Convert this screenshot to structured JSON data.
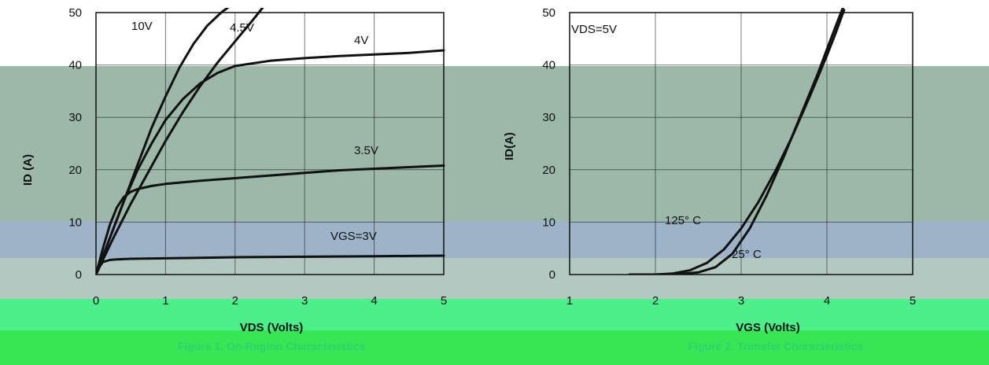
{
  "colors": {
    "plot_bg": "#9bb8a8",
    "band_mid": "#9db3c8",
    "band_low": "#b3c8c0",
    "green_top": "#4cf08a",
    "green_bottom": "#37e655",
    "curve": "#111111",
    "caption": "#2fd26a"
  },
  "chart_data": [
    {
      "type": "line",
      "title": "Figure 1. On-Region Characteristics",
      "xlabel": "VDS (Volts)",
      "ylabel": "ID (A)",
      "xlim": [
        0,
        5
      ],
      "ylim": [
        0,
        50
      ],
      "x_ticks": [
        "0",
        "1",
        "2",
        "3",
        "4",
        "5"
      ],
      "y_ticks": [
        "0",
        "10",
        "20",
        "30",
        "40",
        "50"
      ],
      "series": [
        {
          "name": "10V",
          "x": [
            0,
            0.2,
            0.4,
            0.6,
            0.8,
            1.0,
            1.2,
            1.4,
            1.6,
            1.8,
            1.9
          ],
          "y": [
            0,
            7,
            14,
            21,
            28,
            34,
            39.5,
            44,
            47.5,
            50,
            51
          ]
        },
        {
          "name": "4.5V",
          "x": [
            0,
            0.25,
            0.5,
            0.75,
            1.0,
            1.25,
            1.5,
            1.75,
            2.0,
            2.25,
            2.4
          ],
          "y": [
            0,
            7,
            13.5,
            19.5,
            25.5,
            31,
            36,
            40.5,
            44.5,
            48.5,
            51
          ]
        },
        {
          "name": "4V",
          "x": [
            0,
            0.2,
            0.4,
            0.6,
            0.8,
            1.0,
            1.25,
            1.5,
            1.75,
            2.0,
            2.5,
            3.0,
            3.5,
            4.0,
            4.5,
            5.0
          ],
          "y": [
            0,
            7,
            14,
            20,
            25,
            29.5,
            33.5,
            36.5,
            38.5,
            39.8,
            40.8,
            41.3,
            41.7,
            42,
            42.3,
            42.8
          ]
        },
        {
          "name": "3.5V",
          "x": [
            0,
            0.1,
            0.2,
            0.3,
            0.4,
            0.5,
            0.6,
            0.8,
            1.0,
            1.5,
            2.0,
            2.5,
            3.0,
            3.5,
            4.0,
            4.5,
            5.0
          ],
          "y": [
            0,
            5,
            9.5,
            12.8,
            14.8,
            15.8,
            16.3,
            16.9,
            17.3,
            17.9,
            18.4,
            18.9,
            19.4,
            19.9,
            20.2,
            20.5,
            20.8
          ]
        },
        {
          "name": "VGS=3V",
          "x": [
            0,
            0.05,
            0.1,
            0.2,
            0.3,
            0.5,
            1.0,
            2.0,
            3.0,
            4.0,
            5.0
          ],
          "y": [
            0,
            1.5,
            2.4,
            2.8,
            2.9,
            3.0,
            3.1,
            3.3,
            3.4,
            3.5,
            3.6
          ]
        }
      ],
      "annotations": [
        "10V",
        "4.5V",
        "4V",
        "3.5V",
        "VGS=3V"
      ],
      "grid": true
    },
    {
      "type": "line",
      "title": "Figure 2. Transfer Characteristics",
      "xlabel": "VGS (Volts)",
      "ylabel": "ID(A)",
      "xlim": [
        1,
        5
      ],
      "ylim": [
        0,
        50
      ],
      "x_ticks": [
        "1",
        "2",
        "3",
        "4",
        "5"
      ],
      "y_ticks": [
        "0",
        "10",
        "20",
        "30",
        "40",
        "50"
      ],
      "series": [
        {
          "name": "125° C",
          "x": [
            1.7,
            2.0,
            2.2,
            2.4,
            2.6,
            2.8,
            3.0,
            3.2,
            3.4,
            3.6,
            3.8,
            4.0,
            4.1,
            4.2
          ],
          "y": [
            0,
            0,
            0.2,
            0.8,
            2.2,
            4.8,
            8.8,
            13.8,
            19.8,
            26.5,
            34,
            41.8,
            46,
            50.5
          ]
        },
        {
          "name": "25° C",
          "x": [
            1.7,
            2.0,
            2.3,
            2.5,
            2.7,
            2.9,
            3.1,
            3.3,
            3.5,
            3.7,
            3.9,
            4.0,
            4.1,
            4.2
          ],
          "y": [
            0,
            0,
            0.1,
            0.4,
            1.4,
            4,
            8.8,
            15.2,
            22.6,
            30.6,
            38.6,
            43,
            47.3,
            51.5
          ]
        }
      ],
      "annotations": [
        "VDS=5V",
        "125° C",
        "25° C"
      ],
      "grid": true
    }
  ]
}
